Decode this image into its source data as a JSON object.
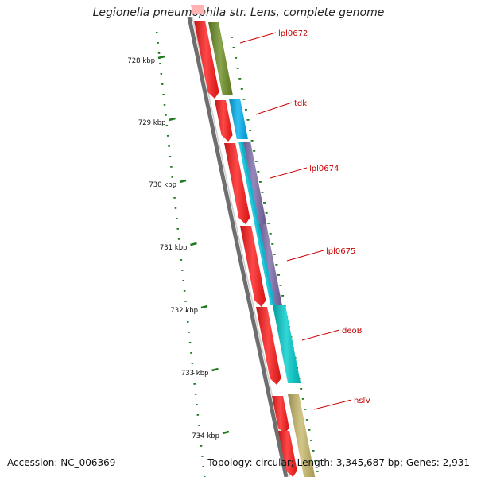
{
  "title": "Legionella pneumophila str. Lens, complete genome",
  "accession": "Accession: NC_006369",
  "summary": "Topology: circular; Length: 3,345,687 bp; Genes: 2,931",
  "colors": {
    "backbone": "#6e6e6e",
    "cds": "#ff1a1a",
    "tick": "#1f7a1f",
    "label": "#cc0000"
  },
  "ruler": [
    {
      "label": "728 kbp"
    },
    {
      "label": "729 kbp"
    },
    {
      "label": "730 kbp"
    },
    {
      "label": "731 kbp"
    },
    {
      "label": "732 kbp"
    },
    {
      "label": "733 kbp"
    },
    {
      "label": "734 kbp"
    }
  ],
  "genes": [
    {
      "label": "lpl0672",
      "feature_color": "#6b8e23"
    },
    {
      "label": "tdk",
      "feature_color": "#00b0f0"
    },
    {
      "label": "lpl0674",
      "feature_color": "#7b6aa8"
    },
    {
      "label": "lpl0675",
      "feature_color": "#7b6aa8"
    },
    {
      "label": "deoB",
      "feature_color": "#00cccc"
    },
    {
      "label": "hslV",
      "feature_color": "#c8b96a"
    }
  ]
}
